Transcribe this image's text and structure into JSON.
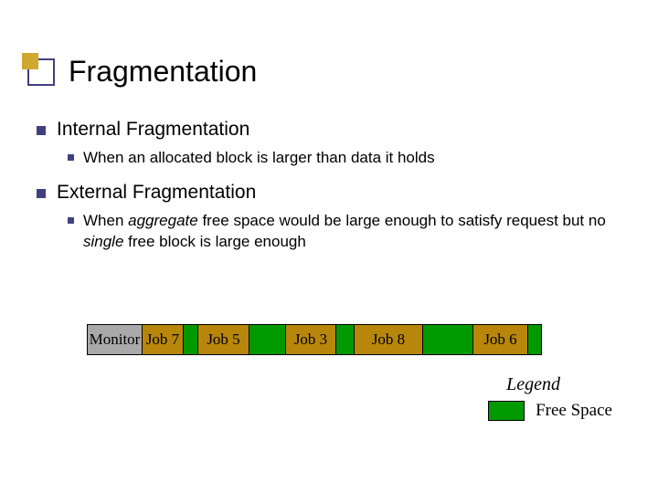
{
  "title": "Fragmentation",
  "bullets": {
    "b1": "Internal Fragmentation",
    "b1_1": "When an allocated block is larger than data it holds",
    "b2": "External Fragmentation",
    "b2_1a": "When ",
    "b2_1b": "aggregate",
    "b2_1c": " free space would be large enough to satisfy request but no ",
    "b2_1d": "single",
    "b2_1e": " free block is large enough"
  },
  "colors": {
    "monitor": "#a9a9a9",
    "job": "#b8860b",
    "free": "#009900",
    "border": "#000000"
  },
  "segments": [
    {
      "label": "Monitor",
      "width": 60,
      "color_key": "monitor"
    },
    {
      "label": "Job 7",
      "width": 45,
      "color_key": "job"
    },
    {
      "label": "",
      "width": 16,
      "color_key": "free"
    },
    {
      "label": "Job 5",
      "width": 56,
      "color_key": "job"
    },
    {
      "label": "",
      "width": 40,
      "color_key": "free"
    },
    {
      "label": "Job 3",
      "width": 55,
      "color_key": "job"
    },
    {
      "label": "",
      "width": 20,
      "color_key": "free"
    },
    {
      "label": "Job 8",
      "width": 75,
      "color_key": "job"
    },
    {
      "label": "",
      "width": 55,
      "color_key": "free"
    },
    {
      "label": "Job 6",
      "width": 60,
      "color_key": "job"
    },
    {
      "label": "",
      "width": 14,
      "color_key": "free"
    }
  ],
  "legend": {
    "title": "Legend",
    "free_label": "Free Space",
    "free_color": "#009900"
  }
}
